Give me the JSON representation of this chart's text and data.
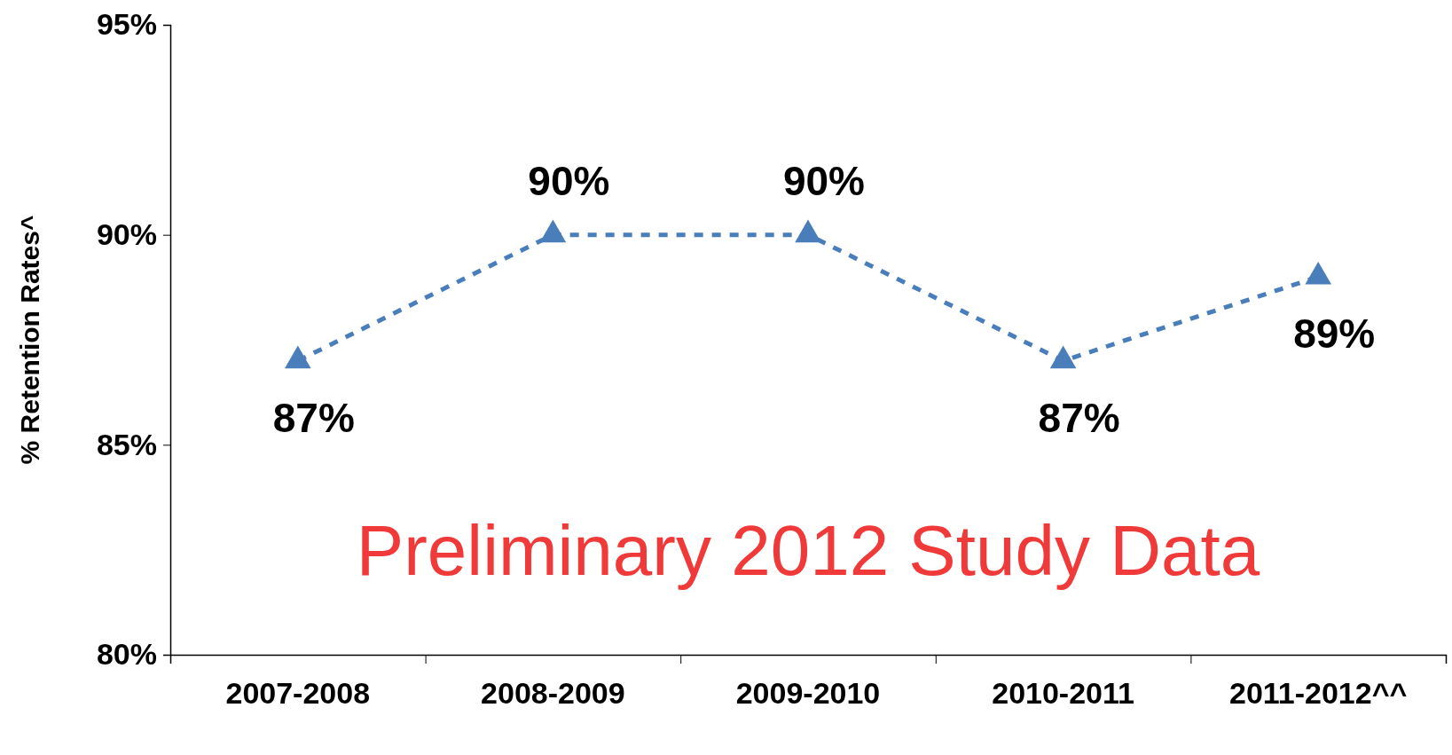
{
  "chart_data": {
    "type": "line",
    "ylabel": "% Retention Rates^",
    "categories": [
      "2007-2008",
      "2008-2009",
      "2009-2010",
      "2010-2011",
      "2011-2012^^"
    ],
    "series": [
      {
        "color": "#4a7ebb",
        "values": [
          87,
          90,
          90,
          87,
          89
        ],
        "value_labels": [
          "87%",
          "90%",
          "90%",
          "87%",
          "89%"
        ]
      }
    ],
    "ylim": [
      80,
      95
    ],
    "yticks": [
      {
        "value": 80,
        "label": "80%"
      },
      {
        "value": 85,
        "label": "85%"
      },
      {
        "value": 90,
        "label": "90%"
      },
      {
        "value": 95,
        "label": "95%"
      }
    ],
    "grid": false,
    "marker": "triangle",
    "line_style": "dashed",
    "annotations": [
      "Preliminary 2012 Study Data"
    ]
  }
}
